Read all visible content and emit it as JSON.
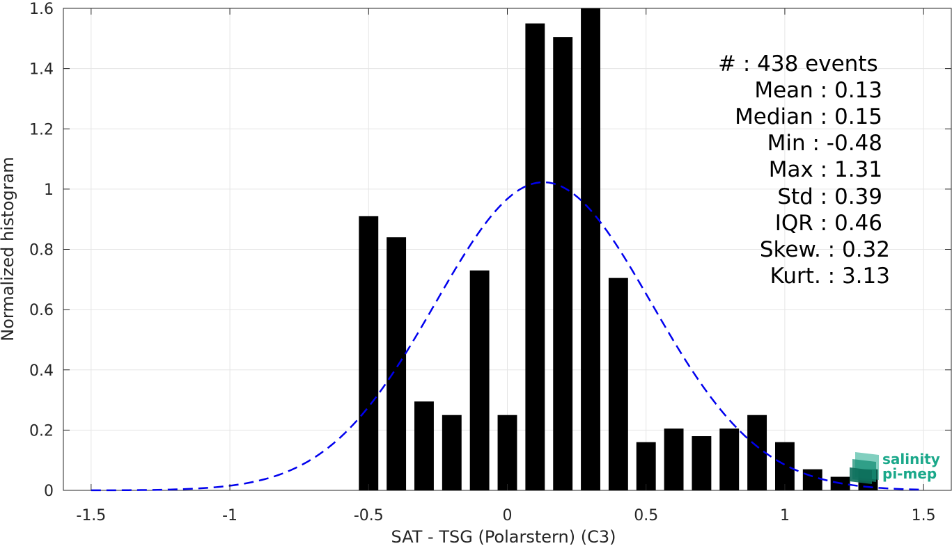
{
  "chart_data": {
    "type": "bar",
    "xlabel": "SAT - TSG (Polarstern) (C3)",
    "ylabel": "Normalized histogram",
    "xlim": [
      -1.6,
      1.6
    ],
    "ylim": [
      0,
      1.6
    ],
    "grid": true,
    "x_ticks": [
      {
        "v": -1.5,
        "label": "-1.5"
      },
      {
        "v": -1,
        "label": "-1"
      },
      {
        "v": -0.5,
        "label": "-0.5"
      },
      {
        "v": 0,
        "label": "0"
      },
      {
        "v": 0.5,
        "label": "0.5"
      },
      {
        "v": 1,
        "label": "1"
      },
      {
        "v": 1.5,
        "label": "1.5"
      }
    ],
    "y_ticks": [
      {
        "v": 0,
        "label": "0"
      },
      {
        "v": 0.2,
        "label": "0.2"
      },
      {
        "v": 0.4,
        "label": "0.4"
      },
      {
        "v": 0.6,
        "label": "0.6"
      },
      {
        "v": 0.8,
        "label": "0.8"
      },
      {
        "v": 1,
        "label": "1"
      },
      {
        "v": 1.2,
        "label": "1.2"
      },
      {
        "v": 1.4,
        "label": "1.4"
      },
      {
        "v": 1.6,
        "label": "1.6"
      }
    ],
    "bar_width": 0.07,
    "bars": [
      {
        "x": -0.5,
        "y": 0.91
      },
      {
        "x": -0.4,
        "y": 0.84
      },
      {
        "x": -0.3,
        "y": 0.295
      },
      {
        "x": -0.2,
        "y": 0.25
      },
      {
        "x": -0.1,
        "y": 0.73
      },
      {
        "x": 0.0,
        "y": 0.25
      },
      {
        "x": 0.1,
        "y": 1.55
      },
      {
        "x": 0.2,
        "y": 1.505
      },
      {
        "x": 0.3,
        "y": 1.6
      },
      {
        "x": 0.4,
        "y": 0.705
      },
      {
        "x": 0.5,
        "y": 0.16
      },
      {
        "x": 0.6,
        "y": 0.205
      },
      {
        "x": 0.7,
        "y": 0.18
      },
      {
        "x": 0.8,
        "y": 0.205
      },
      {
        "x": 0.9,
        "y": 0.25
      },
      {
        "x": 1.0,
        "y": 0.16
      },
      {
        "x": 1.1,
        "y": 0.07
      },
      {
        "x": 1.2,
        "y": 0.045
      },
      {
        "x": 1.3,
        "y": 0.07
      }
    ],
    "fit_curve": {
      "style": "dashed",
      "color": "#0000ee",
      "mean": 0.13,
      "std": 0.39,
      "x_range": [
        -1.5,
        1.5
      ]
    },
    "bar_color": "#000000"
  },
  "stats": [
    {
      "label": "#  : 438 events"
    },
    {
      "label": "Mean : 0.13"
    },
    {
      "label": "Median : 0.15"
    },
    {
      "label": "Min : -0.48"
    },
    {
      "label": "Max : 1.31"
    },
    {
      "label": "Std : 0.39"
    },
    {
      "label": "IQR : 0.46"
    },
    {
      "label": "Skew. : 0.32"
    },
    {
      "label": "Kurt. : 3.13"
    }
  ],
  "logo": {
    "line1": "salinity",
    "line2": "pi-mep",
    "color": "#1aa88a"
  }
}
